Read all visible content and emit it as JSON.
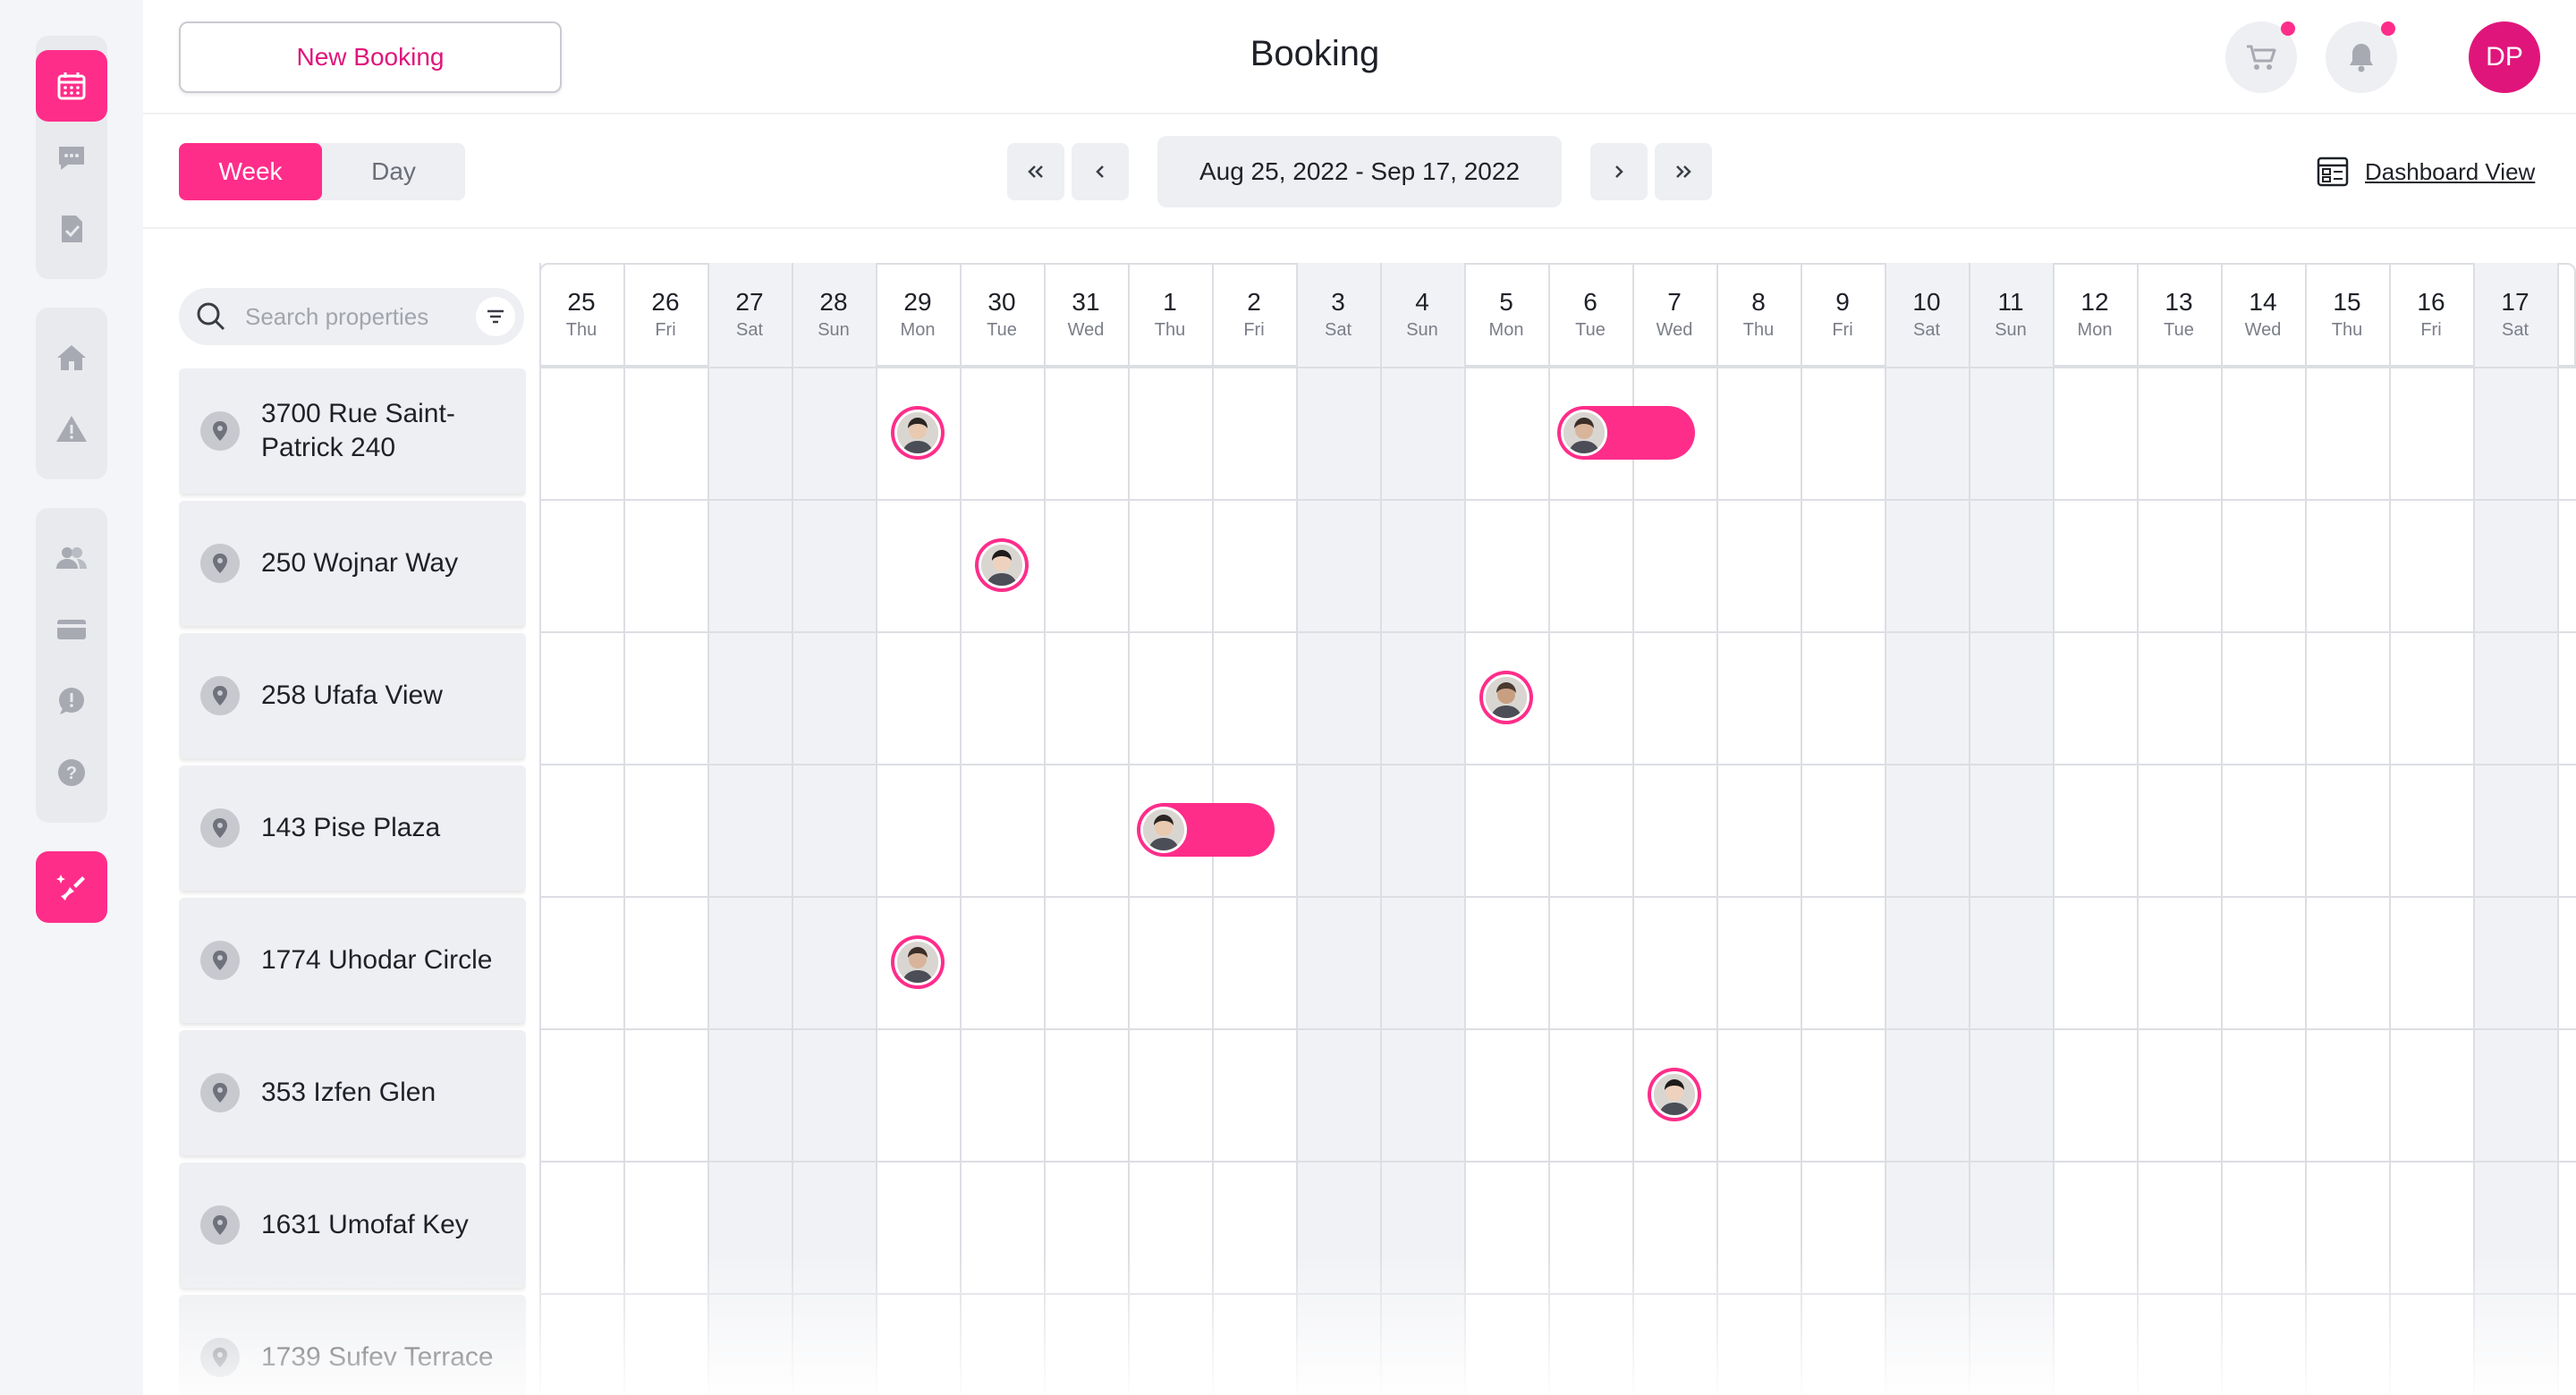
{
  "header": {
    "new_booking_label": "New Booking",
    "title": "Booking",
    "user_initials": "DP"
  },
  "controls": {
    "views": [
      {
        "label": "Week",
        "active": true
      },
      {
        "label": "Day",
        "active": false
      }
    ],
    "date_range": "Aug 25, 2022 - Sep 17, 2022",
    "dashboard_view_label": "Dashboard View"
  },
  "search": {
    "placeholder": "Search properties"
  },
  "sidebar": {
    "groups": [
      {
        "items": [
          {
            "icon": "calendar-icon",
            "active": true
          },
          {
            "icon": "chat-icon"
          },
          {
            "icon": "checklist-icon"
          }
        ]
      },
      {
        "items": [
          {
            "icon": "home-icon"
          },
          {
            "icon": "warning-icon"
          }
        ]
      },
      {
        "items": [
          {
            "icon": "users-icon"
          },
          {
            "icon": "credit-card-icon"
          },
          {
            "icon": "alert-bubble-icon"
          },
          {
            "icon": "help-icon"
          }
        ]
      }
    ],
    "bottom": {
      "icon": "cleaning-icon"
    }
  },
  "properties": [
    {
      "name": "3700 Rue Saint-Patrick 240"
    },
    {
      "name": "250 Wojnar Way"
    },
    {
      "name": "258 Ufafa View"
    },
    {
      "name": "143 Pise Plaza"
    },
    {
      "name": "1774 Uhodar Circle"
    },
    {
      "name": "353 Izfen Glen"
    },
    {
      "name": "1631 Umofaf Key"
    },
    {
      "name": "1739 Sufev Terrace"
    }
  ],
  "days": [
    {
      "num": "25",
      "dow": "Thu"
    },
    {
      "num": "26",
      "dow": "Fri"
    },
    {
      "num": "27",
      "dow": "Sat"
    },
    {
      "num": "28",
      "dow": "Sun"
    },
    {
      "num": "29",
      "dow": "Mon"
    },
    {
      "num": "30",
      "dow": "Tue"
    },
    {
      "num": "31",
      "dow": "Wed"
    },
    {
      "num": "1",
      "dow": "Thu"
    },
    {
      "num": "2",
      "dow": "Fri"
    },
    {
      "num": "3",
      "dow": "Sat"
    },
    {
      "num": "4",
      "dow": "Sun"
    },
    {
      "num": "5",
      "dow": "Mon"
    },
    {
      "num": "6",
      "dow": "Tue"
    },
    {
      "num": "7",
      "dow": "Wed"
    },
    {
      "num": "8",
      "dow": "Thu"
    },
    {
      "num": "9",
      "dow": "Fri"
    },
    {
      "num": "10",
      "dow": "Sat"
    },
    {
      "num": "11",
      "dow": "Sun"
    },
    {
      "num": "12",
      "dow": "Mon"
    },
    {
      "num": "13",
      "dow": "Tue"
    },
    {
      "num": "14",
      "dow": "Wed"
    },
    {
      "num": "15",
      "dow": "Thu"
    },
    {
      "num": "16",
      "dow": "Fri"
    },
    {
      "num": "17",
      "dow": "Sat"
    }
  ],
  "bookings": [
    {
      "property": 0,
      "start_day": "29",
      "end_day": "29"
    },
    {
      "property": 0,
      "start_day": "6",
      "end_day": "7"
    },
    {
      "property": 1,
      "start_day": "30",
      "end_day": "30"
    },
    {
      "property": 2,
      "start_day": "5",
      "end_day": "5"
    },
    {
      "property": 3,
      "start_day": "1",
      "end_day": "2"
    },
    {
      "property": 4,
      "start_day": "29",
      "end_day": "29"
    },
    {
      "property": 5,
      "start_day": "7",
      "end_day": "7"
    }
  ],
  "colors": {
    "accent": "#ff2d8a",
    "accent_text": "#e0157b",
    "weekend_bg": "#f1f2f5",
    "grid_line": "#dcdee3"
  }
}
